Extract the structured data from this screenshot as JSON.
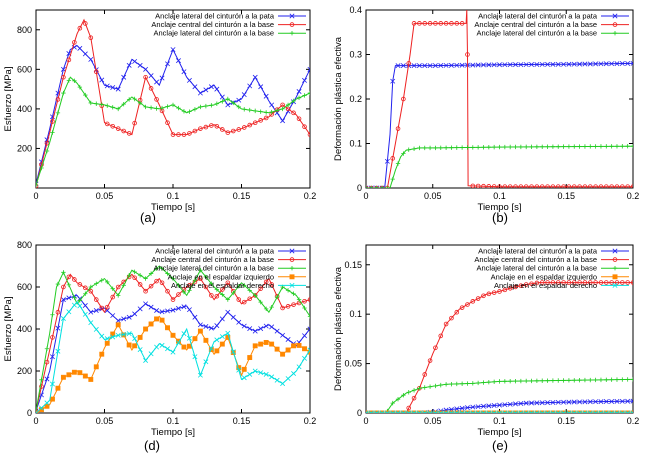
{
  "chart_data": [
    {
      "id": "a",
      "type": "line",
      "panel_label": "(a)",
      "xlabel": "Tiempo [s]",
      "ylabel": "Esfuerzo [MPa]",
      "xlim": [
        0,
        0.2
      ],
      "ylim": [
        0,
        900
      ],
      "xticks": [
        0,
        0.05,
        0.1,
        0.15,
        0.2
      ],
      "xtick_labels": [
        "0",
        "0.05",
        "0.1",
        "0.15",
        "0.2"
      ],
      "yticks": [
        200,
        400,
        600,
        800
      ],
      "ytick_labels": [
        "200",
        "400",
        "600",
        "800"
      ],
      "grid": false,
      "legend_position": "top-right",
      "series": [
        {
          "name": "Anclaje lateral del cinturón a la pata",
          "color": "#2222ee",
          "marker": "x",
          "x": [
            0,
            0.01,
            0.02,
            0.025,
            0.03,
            0.04,
            0.05,
            0.06,
            0.07,
            0.08,
            0.09,
            0.1,
            0.11,
            0.12,
            0.13,
            0.14,
            0.15,
            0.16,
            0.17,
            0.18,
            0.19,
            0.2
          ],
          "y": [
            20,
            300,
            600,
            700,
            720,
            650,
            520,
            500,
            650,
            600,
            520,
            700,
            560,
            480,
            520,
            420,
            450,
            560,
            440,
            340,
            460,
            600
          ]
        },
        {
          "name": "Anclaje central del cinturón a la base",
          "color": "#ee2222",
          "marker": "o",
          "x": [
            0,
            0.01,
            0.02,
            0.03,
            0.035,
            0.04,
            0.05,
            0.06,
            0.07,
            0.08,
            0.09,
            0.1,
            0.11,
            0.12,
            0.13,
            0.14,
            0.15,
            0.16,
            0.17,
            0.18,
            0.19,
            0.2
          ],
          "y": [
            10,
            280,
            560,
            780,
            850,
            760,
            330,
            300,
            270,
            560,
            420,
            270,
            270,
            300,
            320,
            280,
            300,
            330,
            360,
            420,
            370,
            270
          ]
        },
        {
          "name": "Anclaje lateral del cinturón a la base",
          "color": "#22cc22",
          "marker": "+",
          "x": [
            0,
            0.01,
            0.02,
            0.025,
            0.03,
            0.04,
            0.05,
            0.06,
            0.07,
            0.08,
            0.09,
            0.1,
            0.11,
            0.12,
            0.13,
            0.14,
            0.15,
            0.16,
            0.17,
            0.18,
            0.19,
            0.2
          ],
          "y": [
            15,
            230,
            480,
            560,
            530,
            430,
            420,
            400,
            460,
            410,
            400,
            420,
            380,
            410,
            420,
            450,
            400,
            390,
            380,
            400,
            450,
            480
          ]
        }
      ]
    },
    {
      "id": "b",
      "type": "line",
      "panel_label": "(b)",
      "xlabel": "Tiempo [s]",
      "ylabel": "Deformación plástica efectiva",
      "xlim": [
        0,
        0.2
      ],
      "ylim": [
        0,
        0.4
      ],
      "xticks": [
        0,
        0.05,
        0.1,
        0.15,
        0.2
      ],
      "xtick_labels": [
        "0",
        "0.05",
        "0.1",
        "0.15",
        "0.2"
      ],
      "yticks": [
        0,
        0.1,
        0.2,
        0.3,
        0.4
      ],
      "ytick_labels": [
        "0",
        "0.1",
        "0.2",
        "0.3",
        "0.4"
      ],
      "grid": false,
      "legend_position": "top-right",
      "series": [
        {
          "name": "Anclaje lateral del cinturón a la pata",
          "color": "#2222ee",
          "marker": "x",
          "x": [
            0,
            0.014,
            0.018,
            0.02,
            0.022,
            0.03,
            0.05,
            0.1,
            0.15,
            0.2
          ],
          "y": [
            0,
            0,
            0.12,
            0.24,
            0.275,
            0.275,
            0.275,
            0.277,
            0.278,
            0.28
          ]
        },
        {
          "name": "Anclaje central del cinturón a la base",
          "color": "#ee2222",
          "marker": "o",
          "x": [
            0,
            0.016,
            0.022,
            0.028,
            0.033,
            0.036,
            0.05,
            0.075,
            0.0755,
            0.076,
            0.0765,
            0.1,
            0.15,
            0.2
          ],
          "y": [
            0,
            0,
            0.1,
            0.2,
            0.3,
            0.37,
            0.37,
            0.37,
            0.4,
            0.3,
            0.005,
            0.003,
            0.003,
            0.003
          ]
        },
        {
          "name": "Anclaje lateral del cinturón a la base",
          "color": "#22cc22",
          "marker": "+",
          "x": [
            0,
            0.018,
            0.022,
            0.026,
            0.03,
            0.04,
            0.05,
            0.1,
            0.15,
            0.2
          ],
          "y": [
            0,
            0,
            0.04,
            0.07,
            0.085,
            0.09,
            0.09,
            0.092,
            0.093,
            0.094
          ]
        }
      ]
    },
    {
      "id": "d",
      "type": "line",
      "panel_label": "(d)",
      "xlabel": "Tiempo [s]",
      "ylabel": "Esfuerzo [MPa]",
      "xlim": [
        0,
        0.2
      ],
      "ylim": [
        0,
        800
      ],
      "xticks": [
        0,
        0.05,
        0.1,
        0.15,
        0.2
      ],
      "xtick_labels": [
        "0",
        "0.05",
        "0.1",
        "0.15",
        "0.2"
      ],
      "yticks": [
        0,
        200,
        400,
        600,
        800
      ],
      "ytick_labels": [
        "0",
        "200",
        "400",
        "600",
        "800"
      ],
      "grid": false,
      "legend_position": "top-right",
      "series": [
        {
          "name": "Anclaje lateral del cinturón a la pata",
          "color": "#2222ee",
          "marker": "x",
          "x": [
            0,
            0.01,
            0.02,
            0.03,
            0.04,
            0.05,
            0.06,
            0.07,
            0.08,
            0.09,
            0.1,
            0.11,
            0.12,
            0.13,
            0.14,
            0.15,
            0.16,
            0.17,
            0.18,
            0.19,
            0.2
          ],
          "y": [
            10,
            200,
            540,
            560,
            480,
            500,
            440,
            460,
            520,
            480,
            490,
            510,
            420,
            400,
            480,
            420,
            390,
            420,
            370,
            320,
            400
          ]
        },
        {
          "name": "Anclaje central del cinturón a la base",
          "color": "#ee2222",
          "marker": "o",
          "x": [
            0,
            0.01,
            0.02,
            0.025,
            0.03,
            0.04,
            0.05,
            0.06,
            0.07,
            0.08,
            0.09,
            0.1,
            0.11,
            0.12,
            0.13,
            0.14,
            0.15,
            0.16,
            0.17,
            0.18,
            0.19,
            0.2
          ],
          "y": [
            10,
            300,
            600,
            660,
            620,
            580,
            480,
            600,
            660,
            580,
            640,
            540,
            600,
            640,
            540,
            620,
            520,
            560,
            640,
            500,
            520,
            540
          ]
        },
        {
          "name": "Anclaje lateral del cinturón a la base",
          "color": "#22cc22",
          "marker": "+",
          "x": [
            0,
            0.01,
            0.015,
            0.02,
            0.03,
            0.04,
            0.05,
            0.06,
            0.07,
            0.08,
            0.09,
            0.1,
            0.11,
            0.12,
            0.13,
            0.14,
            0.15,
            0.16,
            0.17,
            0.18,
            0.19,
            0.2
          ],
          "y": [
            10,
            380,
            600,
            670,
            520,
            600,
            640,
            560,
            680,
            640,
            700,
            640,
            560,
            680,
            600,
            540,
            620,
            560,
            480,
            600,
            560,
            460
          ]
        },
        {
          "name": "Anclaje en el espaldar izquierdo",
          "color": "#ff8800",
          "marker": "s",
          "x": [
            0,
            0.01,
            0.02,
            0.03,
            0.04,
            0.05,
            0.06,
            0.07,
            0.08,
            0.09,
            0.1,
            0.11,
            0.12,
            0.13,
            0.14,
            0.15,
            0.16,
            0.17,
            0.18,
            0.19,
            0.2
          ],
          "y": [
            0,
            40,
            170,
            200,
            160,
            310,
            420,
            300,
            400,
            460,
            370,
            300,
            390,
            280,
            360,
            180,
            320,
            340,
            280,
            330,
            290
          ]
        },
        {
          "name": "Anclaje en el espaldar derecho",
          "color": "#00e0e0",
          "marker": "x",
          "x": [
            0,
            0.01,
            0.02,
            0.03,
            0.04,
            0.05,
            0.06,
            0.07,
            0.08,
            0.09,
            0.1,
            0.11,
            0.12,
            0.13,
            0.14,
            0.15,
            0.16,
            0.17,
            0.18,
            0.19,
            0.2
          ],
          "y": [
            0,
            60,
            450,
            530,
            430,
            350,
            370,
            380,
            250,
            330,
            290,
            400,
            180,
            340,
            380,
            160,
            200,
            180,
            140,
            200,
            300
          ]
        }
      ]
    },
    {
      "id": "e",
      "type": "line",
      "panel_label": "(e)",
      "xlabel": "Tiempo [s]",
      "ylabel": "Deformación plástica efectiva",
      "xlim": [
        0,
        0.2
      ],
      "ylim": [
        0,
        0.17
      ],
      "xticks": [
        0,
        0.05,
        0.1,
        0.15,
        0.2
      ],
      "xtick_labels": [
        "0",
        "0.05",
        "0.1",
        "0.15",
        "0.2"
      ],
      "yticks": [
        0,
        0.05,
        0.1,
        0.15
      ],
      "ytick_labels": [
        "0",
        "0.05",
        "0.1",
        "0.15"
      ],
      "grid": false,
      "legend_position": "top-right",
      "series": [
        {
          "name": "Anclaje lateral del cinturón a la pata",
          "color": "#2222ee",
          "marker": "x",
          "x": [
            0,
            0.04,
            0.05,
            0.06,
            0.08,
            0.1,
            0.12,
            0.15,
            0.2
          ],
          "y": [
            0,
            0,
            0.001,
            0.003,
            0.006,
            0.008,
            0.01,
            0.011,
            0.012
          ]
        },
        {
          "name": "Anclaje central del cinturón a la base",
          "color": "#ee2222",
          "marker": "o",
          "x": [
            0,
            0.03,
            0.04,
            0.05,
            0.06,
            0.07,
            0.08,
            0.09,
            0.1,
            0.11,
            0.12,
            0.13,
            0.15,
            0.2
          ],
          "y": [
            0,
            0,
            0.025,
            0.06,
            0.09,
            0.105,
            0.113,
            0.12,
            0.123,
            0.127,
            0.13,
            0.132,
            0.132,
            0.132
          ]
        },
        {
          "name": "Anclaje lateral del cinturón a la base",
          "color": "#22cc22",
          "marker": "+",
          "x": [
            0,
            0.015,
            0.02,
            0.03,
            0.04,
            0.06,
            0.08,
            0.1,
            0.15,
            0.2
          ],
          "y": [
            0,
            0,
            0.01,
            0.02,
            0.025,
            0.029,
            0.03,
            0.032,
            0.033,
            0.034
          ]
        },
        {
          "name": "Anclaje en el espaldar izquierdo",
          "color": "#ff8800",
          "marker": "s",
          "x": [
            0,
            0.05,
            0.1,
            0.15,
            0.2
          ],
          "y": [
            0,
            0,
            0,
            0,
            0
          ]
        },
        {
          "name": "Anclaje en el espaldar derecho",
          "color": "#00e0e0",
          "marker": "x",
          "x": [
            0,
            0.05,
            0.1,
            0.15,
            0.2
          ],
          "y": [
            0,
            0,
            0,
            0,
            0
          ]
        }
      ]
    }
  ]
}
